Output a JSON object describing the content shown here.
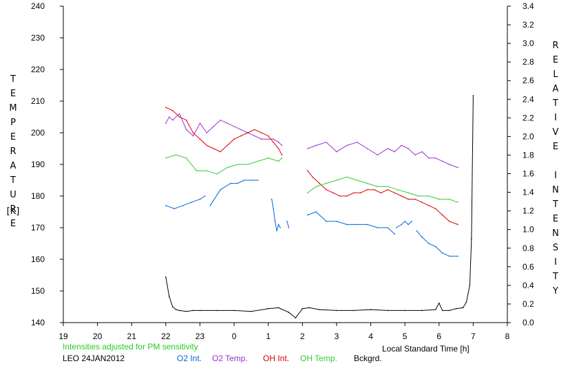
{
  "chart_data": {
    "type": "line",
    "title": "",
    "xlabel": "Local Standard Time [h]",
    "ylabel_left": "TEMPERATURE",
    "ylabel_left_unit": "[K]",
    "ylabel_right": "RELATIVE INTENSITY",
    "xlim": [
      19,
      32
    ],
    "ylim_left": [
      140,
      240
    ],
    "ylim_right": [
      0,
      3.4
    ],
    "x_ticks": [
      19,
      20,
      21,
      22,
      23,
      24,
      25,
      26,
      27,
      28,
      29,
      30,
      31,
      32
    ],
    "x_tick_labels": [
      "19",
      "20",
      "21",
      "22",
      "23",
      "0",
      "1",
      "2",
      "3",
      "4",
      "5",
      "6",
      "7",
      "8"
    ],
    "y_left_ticks": [
      140,
      150,
      160,
      170,
      180,
      190,
      200,
      210,
      220,
      230,
      240
    ],
    "y_right_ticks": [
      "0.0",
      "0.2",
      "0.4",
      "0.6",
      "0.8",
      "1.0",
      "1.2",
      "1.4",
      "1.6",
      "1.8",
      "2.0",
      "2.2",
      "2.4",
      "2.6",
      "2.8",
      "3.0",
      "3.2",
      "3.4"
    ],
    "grid": false,
    "legend": "bottom",
    "series": [
      {
        "name": "O2 Int.",
        "color": "#0066dd",
        "axis": "left",
        "segments": [
          {
            "x": [
              22.0,
              22.25,
              22.5,
              22.75,
              23.0,
              23.15
            ],
            "y": [
              177,
              176,
              177,
              178,
              179,
              180
            ]
          },
          {
            "x": [
              23.3,
              23.6,
              23.9,
              24.1,
              24.3,
              24.5,
              24.7
            ],
            "y": [
              177,
              182,
              184,
              184,
              185,
              185,
              185
            ]
          },
          {
            "x": [
              25.1,
              25.15,
              25.2,
              25.25,
              25.3,
              25.35
            ],
            "y": [
              179,
              176,
              172,
              169,
              171,
              170
            ]
          },
          {
            "x": [
              25.55,
              25.6
            ],
            "y": [
              172,
              170
            ]
          },
          {
            "x": [
              26.15,
              26.4,
              26.7,
              27.0,
              27.3,
              27.6,
              27.9,
              28.2,
              28.5,
              28.7
            ],
            "y": [
              174,
              175,
              172,
              172,
              171,
              171,
              171,
              170,
              170,
              168
            ]
          },
          {
            "x": [
              28.75,
              28.9,
              29.0,
              29.1,
              29.2
            ],
            "y": [
              170,
              171,
              172,
              171,
              172
            ]
          },
          {
            "x": [
              29.35,
              29.5,
              29.7,
              29.9,
              30.1,
              30.3,
              30.55
            ],
            "y": [
              169,
              167,
              165,
              164,
              162,
              161,
              161
            ]
          }
        ]
      },
      {
        "name": "O2 Temp.",
        "color": "#9933cc",
        "axis": "left",
        "segments": [
          {
            "x": [
              22.0,
              22.1,
              22.2,
              22.4,
              22.6,
              22.8,
              23.0,
              23.2,
              23.4,
              23.6,
              23.8,
              24.0,
              24.2,
              24.4,
              24.6,
              24.8,
              25.0,
              25.15,
              25.3,
              25.4
            ],
            "y": [
              203,
              205,
              204,
              206,
              201,
              199,
              203,
              200,
              202,
              204,
              203,
              202,
              201,
              200,
              199,
              198,
              198,
              198,
              197,
              196
            ]
          },
          {
            "x": [
              26.15,
              26.4,
              26.7,
              27.0,
              27.3,
              27.6,
              27.9,
              28.2,
              28.5,
              28.7,
              28.9,
              29.1,
              29.3,
              29.5,
              29.7,
              29.9,
              30.1,
              30.3,
              30.55
            ],
            "y": [
              195,
              196,
              197,
              194,
              196,
              197,
              195,
              193,
              195,
              194,
              196,
              195,
              193,
              194,
              192,
              192,
              191,
              190,
              189
            ]
          }
        ]
      },
      {
        "name": "OH Int.",
        "color": "#dd0000",
        "axis": "left",
        "segments": [
          {
            "x": [
              22.0,
              22.2,
              22.4,
              22.6,
              22.8,
              23.0,
              23.2,
              23.4,
              23.6,
              23.8,
              24.0,
              24.2,
              24.4,
              24.6,
              24.8,
              25.0,
              25.15,
              25.3,
              25.4
            ],
            "y": [
              208,
              207,
              205,
              204,
              200,
              198,
              196,
              195,
              194,
              196,
              198,
              199,
              200,
              201,
              200,
              199,
              197,
              195,
              193
            ]
          },
          {
            "x": [
              26.15,
              26.3,
              26.5,
              26.7,
              26.9,
              27.1,
              27.3,
              27.5,
              27.7,
              27.9,
              28.1,
              28.3,
              28.5,
              28.7,
              28.9,
              29.1,
              29.3,
              29.5,
              29.7,
              29.9,
              30.1,
              30.3,
              30.55
            ],
            "y": [
              188,
              186,
              184,
              182,
              181,
              180,
              180,
              181,
              181,
              182,
              182,
              181,
              182,
              181,
              180,
              179,
              179,
              178,
              177,
              176,
              174,
              172,
              171
            ]
          }
        ]
      },
      {
        "name": "OH Temp.",
        "color": "#33cc33",
        "axis": "left",
        "segments": [
          {
            "x": [
              22.0,
              22.3,
              22.6,
              22.9,
              23.2,
              23.5,
              23.8,
              24.1,
              24.4,
              24.7,
              25.0,
              25.3,
              25.4
            ],
            "y": [
              192,
              193,
              192,
              188,
              188,
              187,
              189,
              190,
              190,
              191,
              192,
              191,
              192
            ]
          },
          {
            "x": [
              26.15,
              26.4,
              26.7,
              27.0,
              27.3,
              27.6,
              27.9,
              28.2,
              28.5,
              28.8,
              29.1,
              29.4,
              29.7,
              30.0,
              30.3,
              30.55
            ],
            "y": [
              181,
              183,
              184,
              185,
              186,
              185,
              184,
              183,
              183,
              182,
              181,
              180,
              180,
              179,
              179,
              178
            ]
          }
        ]
      },
      {
        "name": "Bckgrd.",
        "color": "#000000",
        "axis": "right",
        "x": [
          22.0,
          22.1,
          22.2,
          22.3,
          22.4,
          22.6,
          22.8,
          23.0,
          23.5,
          24.0,
          24.5,
          25.0,
          25.3,
          25.6,
          25.8,
          26.0,
          26.2,
          26.5,
          27.0,
          27.5,
          28.0,
          28.5,
          29.0,
          29.5,
          29.9,
          30.0,
          30.1,
          30.3,
          30.5,
          30.7,
          30.8,
          30.9,
          30.95,
          31.0
        ],
        "y": [
          0.49,
          0.28,
          0.17,
          0.14,
          0.13,
          0.12,
          0.13,
          0.13,
          0.13,
          0.13,
          0.12,
          0.15,
          0.16,
          0.11,
          0.05,
          0.15,
          0.16,
          0.14,
          0.13,
          0.13,
          0.14,
          0.13,
          0.13,
          0.13,
          0.14,
          0.21,
          0.13,
          0.13,
          0.15,
          0.16,
          0.22,
          0.4,
          0.9,
          2.44
        ]
      }
    ],
    "annotations": [
      "Intensities adjusted for PM sensitivity",
      "LEO 24JAN2012"
    ]
  },
  "footer": {
    "note": "Intensities adjusted for PM sensitivity",
    "note_color": "#22cc22",
    "station": "LEO 24JAN2012",
    "legend": [
      {
        "label": "O2 Int.",
        "color": "#0066dd"
      },
      {
        "label": "O2 Temp.",
        "color": "#9933cc"
      },
      {
        "label": "OH Int.",
        "color": "#dd0000"
      },
      {
        "label": "OH Temp.",
        "color": "#33cc33"
      },
      {
        "label": "Bckgrd.",
        "color": "#000000"
      }
    ]
  }
}
